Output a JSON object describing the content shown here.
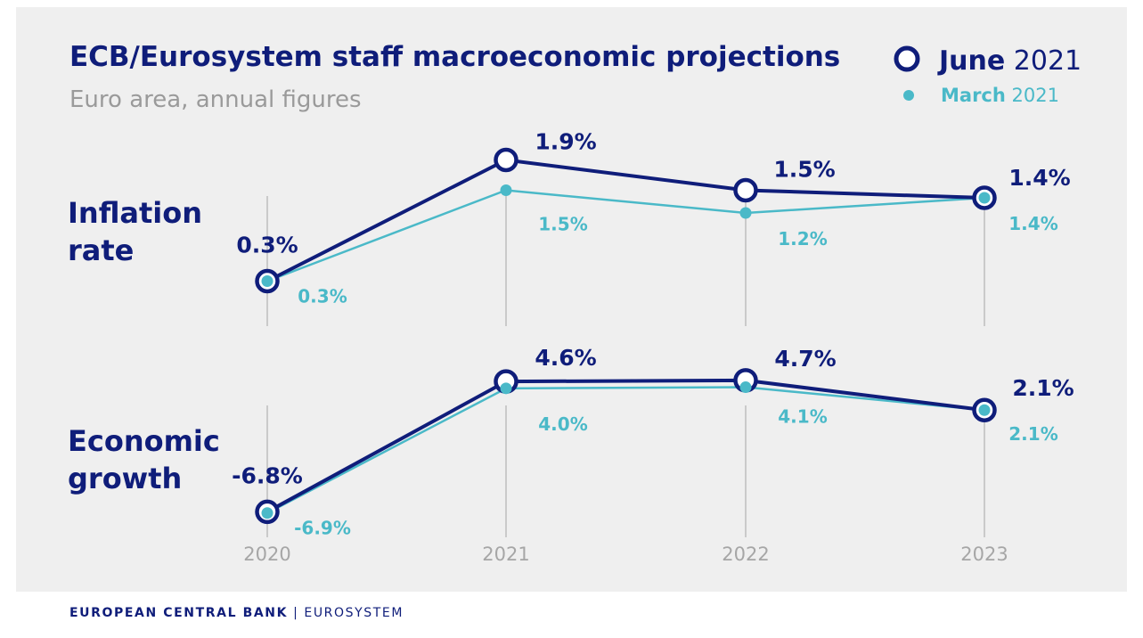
{
  "footer": {
    "bank": "EUROPEAN CENTRAL BANK",
    "separator": "|",
    "system": "EUROSYSTEM"
  },
  "colors": {
    "june": "#0f1d7a",
    "march": "#4ab9c8",
    "gridline": "#bdbdbd",
    "background": "#efefef"
  },
  "chart_data": {
    "type": "line",
    "title": "ECB/Eurosystem staff macroeconomic projections",
    "subtitle": "Euro area, annual figures",
    "x": [
      "2020",
      "2021",
      "2022",
      "2023"
    ],
    "legend": {
      "position": "top-right",
      "items": [
        {
          "bold": "June",
          "rest": " 2021",
          "marker": "hollow-circle"
        },
        {
          "bold": "March",
          "rest": " 2021",
          "marker": "filled-dot"
        }
      ]
    },
    "grid": "vertical lines at each year",
    "panels": [
      {
        "label": [
          "Inflation",
          "rate"
        ],
        "ylim": [
          0,
          2.2
        ],
        "series": [
          {
            "name": "June 2021",
            "values": [
              0.3,
              1.9,
              1.5,
              1.4
            ],
            "labels": [
              "0.3%",
              "1.9%",
              "1.5%",
              "1.4%"
            ]
          },
          {
            "name": "March 2021",
            "values": [
              0.3,
              1.5,
              1.2,
              1.4
            ],
            "labels": [
              "0.3%",
              "1.5%",
              "1.2%",
              "1.4%"
            ]
          }
        ]
      },
      {
        "label": [
          "Economic",
          "growth"
        ],
        "ylim": [
          -7,
          5
        ],
        "series": [
          {
            "name": "June 2021",
            "values": [
              -6.8,
              4.6,
              4.7,
              2.1
            ],
            "labels": [
              "-6.8%",
              "4.6%",
              "4.7%",
              "2.1%"
            ]
          },
          {
            "name": "March 2021",
            "values": [
              -6.9,
              4.0,
              4.1,
              2.1
            ],
            "labels": [
              "-6.9%",
              "4.0%",
              "4.1%",
              "2.1%"
            ]
          }
        ]
      }
    ]
  }
}
